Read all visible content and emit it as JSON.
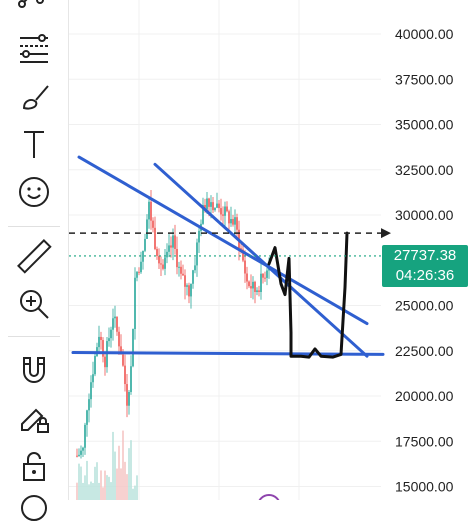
{
  "toolbar": {
    "tools": [
      {
        "name": "pattern-tool-icon"
      },
      {
        "name": "fib-retracement-tool-icon"
      },
      {
        "name": "brush-tool-icon"
      },
      {
        "name": "text-tool-icon"
      },
      {
        "name": "emoji-tool-icon"
      },
      {
        "name": "ruler-tool-icon"
      },
      {
        "name": "zoom-in-icon"
      },
      {
        "name": "magnet-icon"
      },
      {
        "name": "lock-drawing-icon"
      },
      {
        "name": "unlock-icon"
      },
      {
        "name": "more-tools-icon"
      }
    ]
  },
  "price_axis": {
    "labels": [
      "40000.00",
      "37500.00",
      "35000.00",
      "32500.00",
      "30000.00",
      "25000.00",
      "22500.00",
      "20000.00",
      "17500.00",
      "15000.00"
    ],
    "values": [
      40000,
      37500,
      35000,
      32500,
      30000,
      25000,
      22500,
      20000,
      17500,
      15000
    ]
  },
  "current_price": {
    "price": "27737.38",
    "countdown": "04:26:36",
    "value": 27737.38,
    "color": "#16a37f"
  },
  "colors": {
    "trendline": "#2f5fd0",
    "drawing": "#111111",
    "up_candle": "#26a69a",
    "down_candle": "#ef5350",
    "dashed_level": "#222222",
    "current_price_line": "#16a37f"
  },
  "chart_data": {
    "type": "candlestick",
    "ylim": [
      15000,
      41000
    ],
    "dashed_level": 29000,
    "current_price": 27737.38,
    "trendlines": [
      {
        "from": 33200,
        "to": 24000
      },
      {
        "from": 32800,
        "to": 22200
      },
      {
        "from": 22400,
        "to": 22300
      }
    ]
  }
}
